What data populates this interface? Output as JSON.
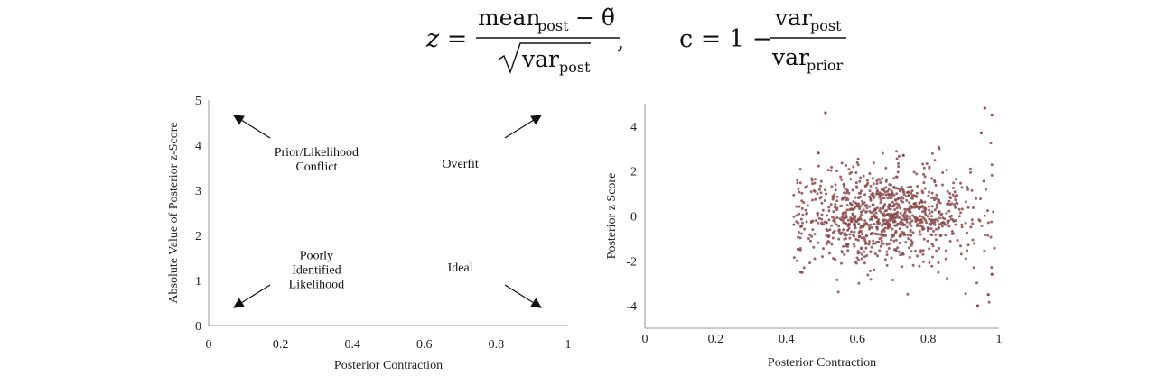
{
  "formula": {
    "z_lhs": "z =",
    "z_numerator_main": "mean",
    "z_numerator_sub": "post",
    "z_numerator_minus": "− θ̃",
    "z_denominator_main": "var",
    "z_denominator_sub": "post",
    "z_comma": ",",
    "c_lhs": "c = 1 −",
    "c_numerator_main": "var",
    "c_numerator_sub": "post",
    "c_denominator_main": "var",
    "c_denominator_sub": "prior"
  },
  "chart_data": [
    {
      "type": "diagram",
      "xlabel": "Posterior Contraction",
      "ylabel": "Absolute Value of Posterior z-Score",
      "xlim": [
        0,
        1
      ],
      "ylim": [
        0,
        5
      ],
      "xticks": [
        "0",
        "0.2",
        "0.4",
        "0.6",
        "0.8",
        "1"
      ],
      "yticks": [
        "0",
        "1",
        "2",
        "3",
        "4",
        "5"
      ],
      "regions": [
        {
          "lines": [
            "Prior/Likelihood",
            "Conflict"
          ],
          "x": 0.3,
          "y": 3.6,
          "arrow_to": "top-left"
        },
        {
          "lines": [
            "Overfit"
          ],
          "x": 0.7,
          "y": 3.5,
          "arrow_to": "top-right"
        },
        {
          "lines": [
            "Poorly",
            "Identified",
            "Likelihood"
          ],
          "x": 0.3,
          "y": 1.15,
          "arrow_to": "bottom-left"
        },
        {
          "lines": [
            "Ideal"
          ],
          "x": 0.7,
          "y": 1.2,
          "arrow_to": "bottom-right"
        }
      ],
      "grid": false
    },
    {
      "type": "scatter",
      "xlabel": "Posterior Contraction",
      "ylabel": "Posterior z Score",
      "xlim": [
        0,
        1
      ],
      "ylim": [
        -5,
        5
      ],
      "xticks": [
        "0",
        "0.2",
        "0.4",
        "0.6",
        "0.8",
        "1"
      ],
      "yticks": [
        "-4",
        "-2",
        "0",
        "2",
        "4"
      ],
      "point_color": "#8b4a4a",
      "n_points": 1000,
      "x_center": 0.68,
      "x_spread": 0.13,
      "x_min": 0.42,
      "x_max": 0.99,
      "y_spread": 1.0,
      "highlight_points": [
        {
          "x": 0.51,
          "y": 4.6
        },
        {
          "x": 0.49,
          "y": 2.8
        },
        {
          "x": 0.44,
          "y": -2.5
        },
        {
          "x": 0.96,
          "y": 4.8
        },
        {
          "x": 0.98,
          "y": 4.5
        },
        {
          "x": 0.95,
          "y": 3.7
        },
        {
          "x": 0.94,
          "y": -4.0
        },
        {
          "x": 0.97,
          "y": -3.5
        },
        {
          "x": 0.98,
          "y": -2.6
        },
        {
          "x": 0.73,
          "y": 2.7
        }
      ],
      "grid": false
    }
  ]
}
